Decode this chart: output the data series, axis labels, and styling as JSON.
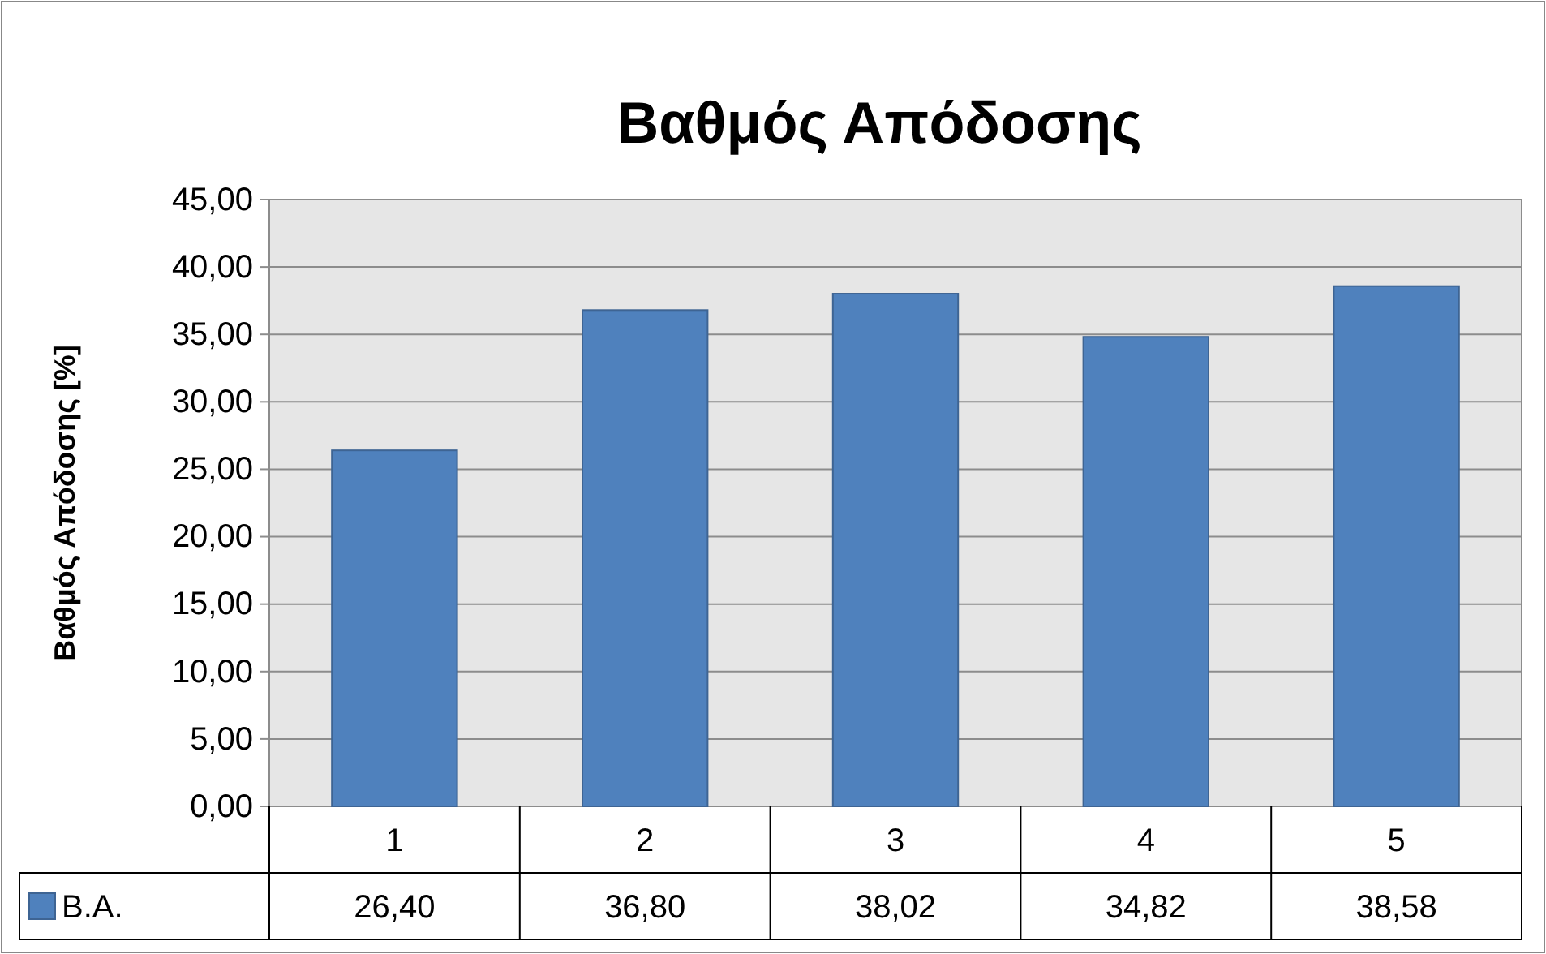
{
  "chart_data": {
    "type": "bar",
    "title": "Βαθμός Απόδοσης",
    "ylabel": "Βαθμός Απόδοσης [%]",
    "categories": [
      "1",
      "2",
      "3",
      "4",
      "5"
    ],
    "series": [
      {
        "name": "B.A.",
        "color": "#4f81bd",
        "values": [
          26.4,
          36.8,
          38.02,
          34.82,
          38.58
        ],
        "value_labels": [
          "26,40",
          "36,80",
          "38,02",
          "34,82",
          "38,58"
        ]
      }
    ],
    "ylim": [
      0,
      45
    ],
    "yticks": [
      {
        "value": 0,
        "label": "0,00"
      },
      {
        "value": 5,
        "label": "5,00"
      },
      {
        "value": 10,
        "label": "10,00"
      },
      {
        "value": 15,
        "label": "15,00"
      },
      {
        "value": 20,
        "label": "20,00"
      },
      {
        "value": 25,
        "label": "25,00"
      },
      {
        "value": 30,
        "label": "30,00"
      },
      {
        "value": 35,
        "label": "35,00"
      },
      {
        "value": 40,
        "label": "40,00"
      },
      {
        "value": 45,
        "label": "45,00"
      }
    ],
    "grid": "y",
    "legend": "bottom"
  }
}
